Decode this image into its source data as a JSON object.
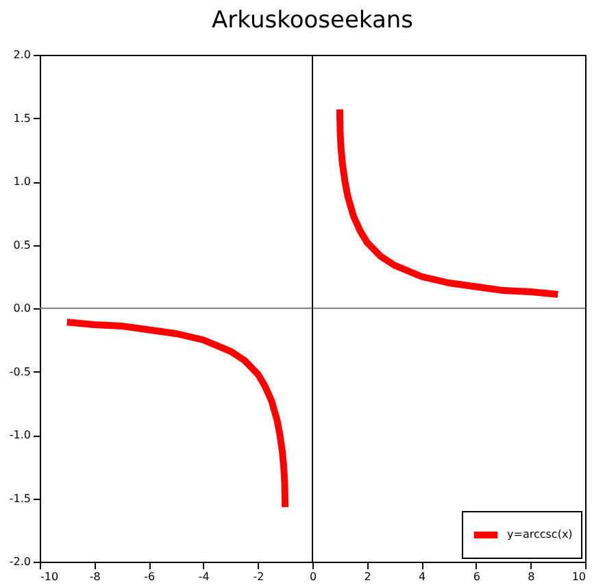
{
  "chart_data": {
    "type": "line",
    "title": "Arkuskooseekans",
    "x": [
      -9,
      -8,
      -7,
      -6,
      -5,
      -4,
      -3,
      -2.5,
      -2,
      -1.75,
      -1.5,
      -1.3,
      -1.2,
      -1.1,
      -1.05,
      -1.02,
      -1,
      0,
      1,
      1.02,
      1.05,
      1.1,
      1.2,
      1.3,
      1.5,
      1.75,
      2,
      2.5,
      3,
      4,
      5,
      6,
      7,
      8,
      9
    ],
    "series": [
      {
        "name": "y=arccsc(x)",
        "color": "#ff0000",
        "values": [
          -0.11,
          -0.13,
          -0.14,
          -0.17,
          -0.2,
          -0.25,
          -0.34,
          -0.41,
          -0.52,
          -0.61,
          -0.73,
          -0.88,
          -0.99,
          -1.14,
          -1.26,
          -1.37,
          -1.57,
          null,
          1.57,
          1.37,
          1.26,
          1.14,
          0.99,
          0.88,
          0.73,
          0.61,
          0.52,
          0.41,
          0.34,
          0.25,
          0.2,
          0.17,
          0.14,
          0.13,
          0.11
        ]
      }
    ],
    "xlim": [
      -10,
      10
    ],
    "xticks": [
      -10,
      -8,
      -6,
      -4,
      -2,
      0,
      2,
      4,
      6,
      8,
      10
    ],
    "ylim": [
      -2,
      2
    ],
    "yticks": [
      {
        "value": -2,
        "label": "-2.0"
      },
      {
        "value": -1.5,
        "label": "-1.5"
      },
      {
        "value": -1,
        "label": "-1.0"
      },
      {
        "value": -0.5,
        "label": "-0.5"
      },
      {
        "value": 0,
        "label": "0.0"
      },
      {
        "value": 0.5,
        "label": "0.5"
      },
      {
        "value": 1,
        "label": "1.0"
      },
      {
        "value": 1.5,
        "label": "1.5"
      },
      {
        "value": 2,
        "label": "2.0"
      }
    ],
    "ref_lines": [
      {
        "axis": "y",
        "value": 0,
        "color": "#808080"
      },
      {
        "axis": "x",
        "value": 0,
        "color": "#000000"
      }
    ],
    "grid": false,
    "legend": "bottom right",
    "marker": "none",
    "line_style": "solid"
  }
}
